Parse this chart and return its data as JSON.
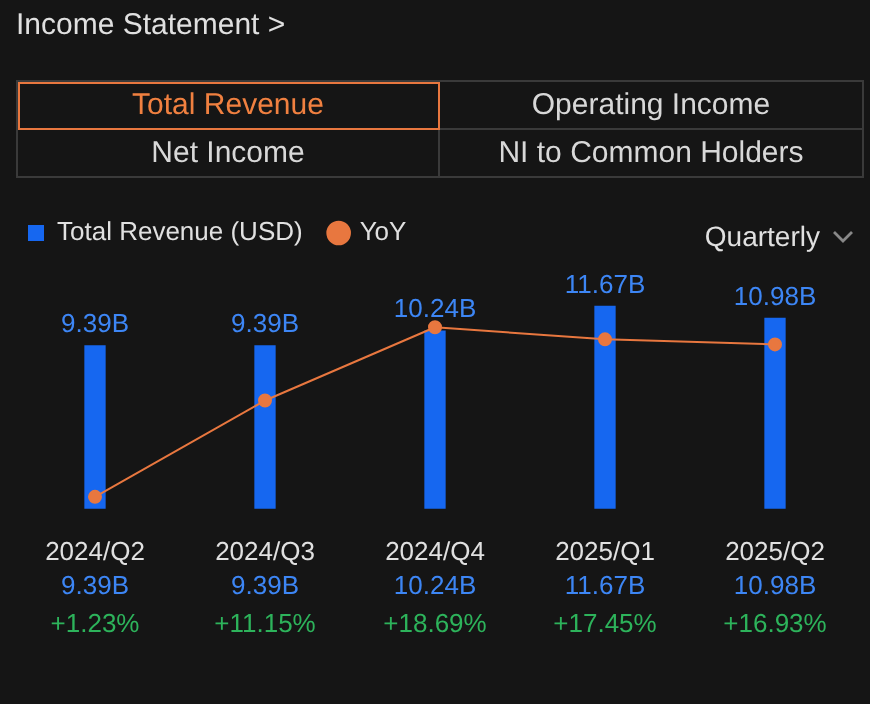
{
  "chart_data": {
    "type": "bar",
    "title": "Income Statement >",
    "annotations": [
      "Total Revenue",
      "Operating Income",
      "Net Income",
      "NI to Common Holders",
      "Quarterly"
    ],
    "categories": [
      "2024/Q2",
      "2024/Q3",
      "2024/Q4",
      "2025/Q1",
      "2025/Q2"
    ],
    "series": [
      {
        "name": "Total Revenue (USD)",
        "color": "#1667f0",
        "values": [
          9.39,
          9.39,
          10.24,
          11.67,
          10.98
        ],
        "value_labels": [
          "9.39B",
          "9.39B",
          "10.24B",
          "11.67B",
          "10.98B"
        ]
      },
      {
        "name": "YoY",
        "type": "line",
        "axis": "y2",
        "color": "#e8773f",
        "values": [
          1.23,
          11.15,
          18.69,
          17.45,
          16.93
        ],
        "value_labels": [
          "+1.23%",
          "+11.15%",
          "+18.69%",
          "+17.45%",
          "+16.93%"
        ]
      }
    ],
    "legend": "top left",
    "marker": "circle"
  }
}
